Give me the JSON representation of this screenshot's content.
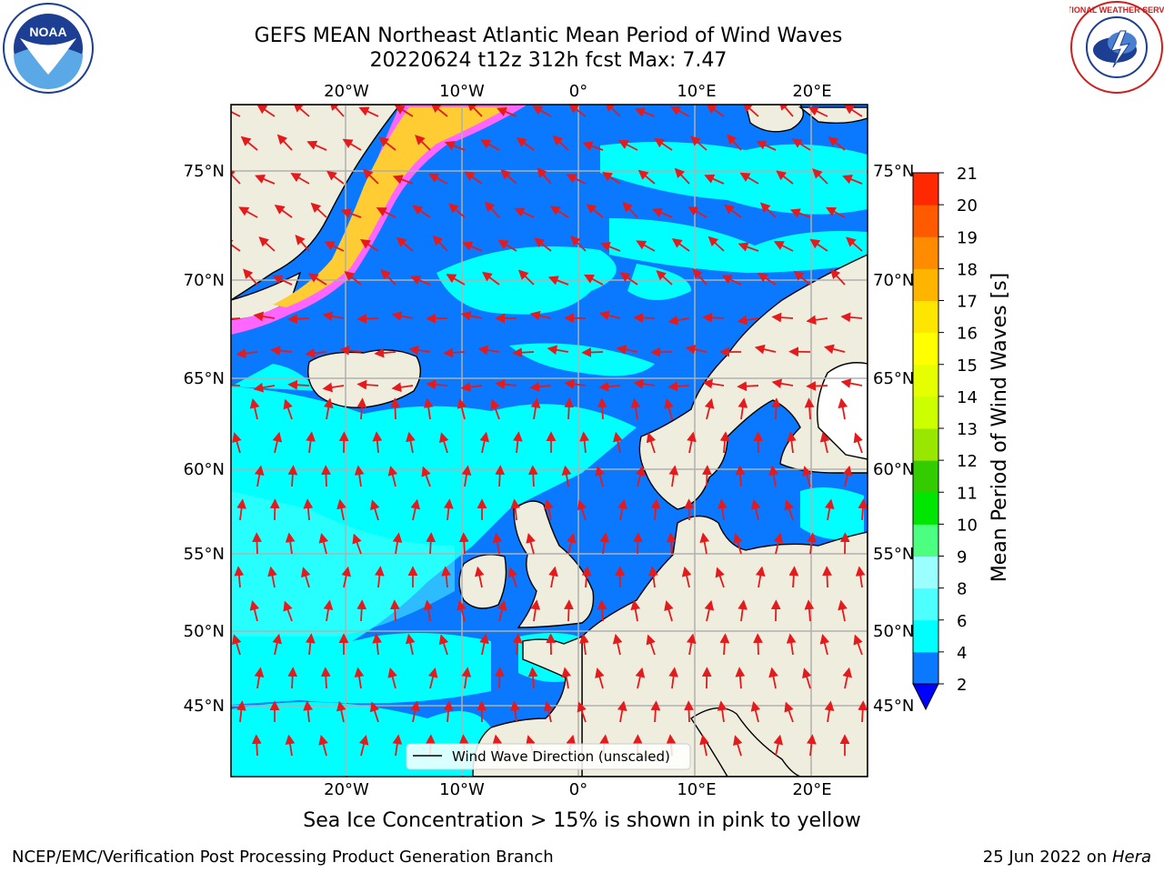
{
  "header": {
    "title_line1": "GEFS MEAN Northeast Atlantic Mean Period of Wind Waves",
    "title_line2": "20220624 t12z 312h fcst   Max: 7.47"
  },
  "logos": {
    "left": {
      "name": "noaa-logo",
      "text": "NOAA"
    },
    "right": {
      "name": "nws-logo",
      "text": "NATIONAL WEATHER SERVICE"
    }
  },
  "map": {
    "projection": "cylindrical",
    "lon_range": [
      -30,
      25
    ],
    "lat_range_labels": [
      "45°N",
      "50°N",
      "55°N",
      "60°N",
      "65°N",
      "70°N",
      "75°N"
    ],
    "lon_labels": [
      "20°W",
      "10°W",
      "0°",
      "10°E",
      "20°E"
    ],
    "legend_label": "Wind Wave Direction (unscaled)",
    "colors": {
      "ocean_low": "#0a78ff",
      "ocean_mid": "#00ffff",
      "land": "#efedde",
      "ice_pink": "#ff66ff",
      "ice_yellow": "#ffcc33",
      "arrow": "#e41a1c",
      "grid": "#b0b0b0"
    }
  },
  "colorbar": {
    "label": "Mean Period of Wind Waves [s]",
    "ticks": [
      "2",
      "4",
      "6",
      "8",
      "9",
      "10",
      "11",
      "12",
      "13",
      "14",
      "15",
      "16",
      "17",
      "18",
      "19",
      "20",
      "21"
    ],
    "colors": [
      "#0a78ff",
      "#00ffff",
      "#4dffff",
      "#9cffff",
      "#4dff80",
      "#00e600",
      "#33cc00",
      "#99e600",
      "#ccff00",
      "#e6ff00",
      "#ffff00",
      "#ffe600",
      "#ffb400",
      "#ff8c00",
      "#ff5a00",
      "#ff2800"
    ],
    "under_color": "#0000ff"
  },
  "footer": {
    "subtitle": "Sea Ice Concentration > 15% is shown in pink to yellow",
    "left": "NCEP/EMC/Verification Post Processing Product Generation Branch",
    "right_date": "25 Jun 2022 on ",
    "right_host": "Hera"
  }
}
